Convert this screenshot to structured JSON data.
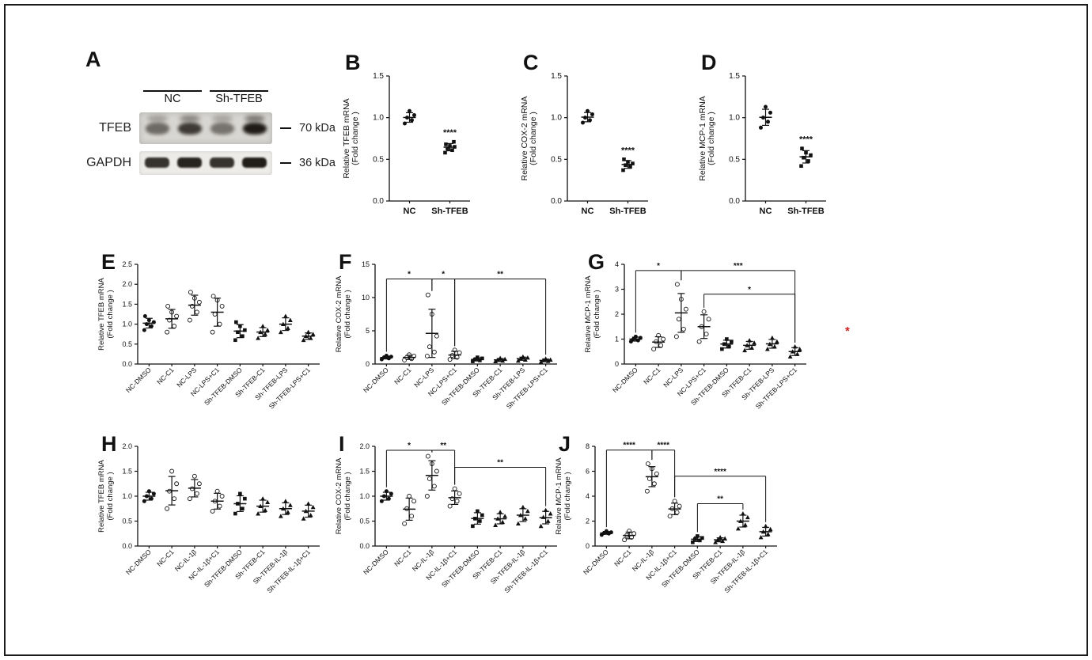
{
  "figure": {
    "background": "#ffffff",
    "border_color": "#1a1a1a"
  },
  "panel_a": {
    "letter": "A",
    "group_labels": [
      "NC",
      "Sh-TFEB"
    ],
    "row_labels": [
      "TFEB",
      "GAPDH"
    ],
    "marker_labels": [
      "70 kDa",
      "36 kDa"
    ],
    "band_intensities": {
      "tfeb": [
        0.55,
        0.8,
        0.5,
        0.95
      ],
      "gapdh": [
        0.85,
        0.92,
        0.85,
        0.95
      ]
    }
  },
  "annotations": {
    "red_star": {
      "text": "*",
      "color": "#cc2222"
    }
  },
  "chart_data": [
    {
      "panel_letter": "B",
      "type": "scatter",
      "ylabel": [
        "Relative TFEB mRNA",
        "(Fold change )"
      ],
      "ylim": [
        0,
        1.5
      ],
      "yticks": [
        0,
        0.5,
        1.0,
        1.5
      ],
      "ytick_decimals": 1,
      "groups": [
        {
          "label": "NC",
          "marker": "circle",
          "points": [
            0.93,
            0.97,
            1.0,
            1.03,
            1.08
          ]
        },
        {
          "label": "Sh-TFEB",
          "marker": "square",
          "points": [
            0.58,
            0.61,
            0.63,
            0.65,
            0.66,
            0.68,
            0.71
          ]
        }
      ],
      "sig_labels": [
        {
          "group": 1,
          "text": "****"
        }
      ],
      "brackets": []
    },
    {
      "panel_letter": "C",
      "type": "scatter",
      "ylabel": [
        "Relative COX-2 mRNA",
        "(Fold change )"
      ],
      "ylim": [
        0,
        1.5
      ],
      "yticks": [
        0,
        0.5,
        1.0,
        1.5
      ],
      "ytick_decimals": 1,
      "groups": [
        {
          "label": "NC",
          "marker": "circle",
          "points": [
            0.94,
            0.97,
            1.0,
            1.04,
            1.08
          ]
        },
        {
          "label": "Sh-TFEB",
          "marker": "square",
          "points": [
            0.37,
            0.41,
            0.43,
            0.45,
            0.47,
            0.5
          ]
        }
      ],
      "sig_labels": [
        {
          "group": 1,
          "text": "****"
        }
      ],
      "brackets": []
    },
    {
      "panel_letter": "D",
      "type": "scatter",
      "ylabel": [
        "Relative MCP-1 mRNA",
        "(Fold change )"
      ],
      "ylim": [
        0,
        1.5
      ],
      "yticks": [
        0,
        0.5,
        1.0,
        1.5
      ],
      "ytick_decimals": 1,
      "groups": [
        {
          "label": "NC",
          "marker": "circle",
          "points": [
            0.88,
            0.95,
            1.0,
            1.06,
            1.13
          ]
        },
        {
          "label": "Sh-TFEB",
          "marker": "square",
          "points": [
            0.42,
            0.48,
            0.52,
            0.55,
            0.58,
            0.63
          ]
        }
      ],
      "sig_labels": [
        {
          "group": 1,
          "text": "****"
        }
      ],
      "brackets": []
    },
    {
      "panel_letter": "E",
      "type": "scatter",
      "ylabel": [
        "Relative TFEB mRNA",
        "(Fold change )"
      ],
      "ylim": [
        0,
        2.5
      ],
      "yticks": [
        0,
        0.5,
        1.0,
        1.5,
        2.0,
        2.5
      ],
      "ytick_decimals": 1,
      "groups": [
        {
          "label": "NC-DMSO",
          "marker": "circle",
          "points": [
            0.85,
            0.95,
            1.0,
            1.05,
            1.1,
            1.2
          ]
        },
        {
          "label": "NC-C1",
          "marker": "circle-open",
          "points": [
            0.8,
            0.95,
            1.1,
            1.2,
            1.3,
            1.45
          ]
        },
        {
          "label": "NC-LPS",
          "marker": "circle-open",
          "points": [
            1.1,
            1.3,
            1.45,
            1.55,
            1.65,
            1.8
          ]
        },
        {
          "label": "NC-LPS+C1",
          "marker": "circle-open",
          "points": [
            0.8,
            1.0,
            1.25,
            1.45,
            1.6,
            1.7
          ]
        },
        {
          "label": "Sh-TFEB-DMSO",
          "marker": "square",
          "points": [
            0.6,
            0.7,
            0.8,
            0.85,
            0.95,
            1.05
          ]
        },
        {
          "label": "Sh-TFEB-C1",
          "marker": "triangle",
          "points": [
            0.65,
            0.75,
            0.8,
            0.85,
            0.95
          ]
        },
        {
          "label": "Sh-TFEB-LPS",
          "marker": "triangle",
          "points": [
            0.8,
            0.9,
            1.0,
            1.1,
            1.2
          ]
        },
        {
          "label": "Sh-TFEB-LPS+C1",
          "marker": "triangle",
          "points": [
            0.6,
            0.65,
            0.7,
            0.75,
            0.8
          ]
        }
      ],
      "sig_labels": [],
      "brackets": []
    },
    {
      "panel_letter": "F",
      "type": "scatter",
      "ylabel": [
        "Relative COX-2 mRNA",
        "(Fold change )"
      ],
      "ylim": [
        0,
        15
      ],
      "yticks": [
        0,
        5,
        10,
        15
      ],
      "ytick_decimals": 0,
      "groups": [
        {
          "label": "NC-DMSO",
          "marker": "circle",
          "points": [
            0.7,
            0.85,
            1.0,
            1.1,
            1.25
          ]
        },
        {
          "label": "NC-C1",
          "marker": "circle-open",
          "points": [
            0.6,
            0.8,
            1.0,
            1.2,
            1.4
          ]
        },
        {
          "label": "NC-LPS",
          "marker": "circle-open",
          "points": [
            1.2,
            1.8,
            2.6,
            4.2,
            7.5,
            10.4
          ]
        },
        {
          "label": "NC-LPS+C1",
          "marker": "circle-open",
          "points": [
            0.7,
            1.0,
            1.3,
            1.7,
            2.1
          ]
        },
        {
          "label": "Sh-TFEB-DMSO",
          "marker": "square",
          "points": [
            0.4,
            0.55,
            0.7,
            0.85,
            1.0
          ]
        },
        {
          "label": "Sh-TFEB-C1",
          "marker": "triangle",
          "points": [
            0.4,
            0.5,
            0.6,
            0.75,
            0.9
          ]
        },
        {
          "label": "Sh-TFEB-LPS",
          "marker": "triangle",
          "points": [
            0.5,
            0.65,
            0.8,
            0.95,
            1.1
          ]
        },
        {
          "label": "Sh-TFEB-LPS+C1",
          "marker": "triangle",
          "points": [
            0.3,
            0.45,
            0.55,
            0.65,
            0.8
          ]
        }
      ],
      "sig_labels": [],
      "brackets": [
        {
          "from": 0,
          "to": 2,
          "label": "*",
          "y": 12.8
        },
        {
          "from": 2,
          "to": 3,
          "label": "*",
          "y": 12.8
        },
        {
          "from": 3,
          "to": 7,
          "label": "**",
          "y": 12.8
        }
      ]
    },
    {
      "panel_letter": "G",
      "type": "scatter",
      "ylabel": [
        "Relative MCP-1 mRNA",
        "(Fold change )"
      ],
      "ylim": [
        0,
        4
      ],
      "yticks": [
        0,
        1,
        2,
        3,
        4
      ],
      "ytick_decimals": 0,
      "groups": [
        {
          "label": "NC-DMSO",
          "marker": "circle",
          "points": [
            0.9,
            0.95,
            1.0,
            1.05,
            1.1
          ]
        },
        {
          "label": "NC-C1",
          "marker": "circle-open",
          "points": [
            0.6,
            0.75,
            0.9,
            1.0,
            1.15
          ]
        },
        {
          "label": "NC-LPS",
          "marker": "circle-open",
          "points": [
            1.1,
            1.4,
            1.8,
            2.2,
            2.6,
            3.2
          ]
        },
        {
          "label": "NC-LPS+C1",
          "marker": "circle-open",
          "points": [
            0.9,
            1.2,
            1.5,
            1.8,
            2.1
          ]
        },
        {
          "label": "Sh-TFEB-DMSO",
          "marker": "square",
          "points": [
            0.6,
            0.7,
            0.8,
            0.9,
            1.0
          ]
        },
        {
          "label": "Sh-TFEB-C1",
          "marker": "triangle",
          "points": [
            0.55,
            0.65,
            0.75,
            0.85,
            0.95
          ]
        },
        {
          "label": "Sh-TFEB-LPS",
          "marker": "triangle",
          "points": [
            0.6,
            0.7,
            0.8,
            0.9,
            1.05
          ]
        },
        {
          "label": "Sh-TFEB-LPS+C1",
          "marker": "triangle",
          "points": [
            0.3,
            0.4,
            0.5,
            0.6,
            0.7
          ]
        }
      ],
      "sig_labels": [],
      "brackets": [
        {
          "from": 0,
          "to": 2,
          "label": "*",
          "y": 3.75
        },
        {
          "from": 2,
          "to": 7,
          "label": "***",
          "y": 3.75
        },
        {
          "from": 3,
          "to": 7,
          "label": "*",
          "y": 2.8
        }
      ]
    },
    {
      "panel_letter": "H",
      "type": "scatter",
      "ylabel": [
        "Relative TFEB mRNA",
        "(Fold change )"
      ],
      "ylim": [
        0,
        2
      ],
      "yticks": [
        0,
        0.5,
        1.0,
        1.5,
        2.0
      ],
      "ytick_decimals": 1,
      "groups": [
        {
          "label": "NC-DMSO",
          "marker": "circle",
          "points": [
            0.9,
            0.95,
            1.0,
            1.05,
            1.1
          ]
        },
        {
          "label": "NC-C1",
          "marker": "circle-open",
          "points": [
            0.75,
            0.95,
            1.1,
            1.25,
            1.5
          ]
        },
        {
          "label": "NC-IL-1β",
          "marker": "circle-open",
          "points": [
            0.95,
            1.05,
            1.15,
            1.25,
            1.4
          ]
        },
        {
          "label": "NC-IL-1β+C1",
          "marker": "circle-open",
          "points": [
            0.7,
            0.8,
            0.9,
            1.0,
            1.1
          ]
        },
        {
          "label": "Sh-TFEB-DMSO",
          "marker": "square",
          "points": [
            0.65,
            0.75,
            0.85,
            0.95,
            1.05
          ]
        },
        {
          "label": "Sh-TFEB-C1",
          "marker": "triangle",
          "points": [
            0.65,
            0.72,
            0.8,
            0.88,
            0.95
          ]
        },
        {
          "label": "Sh-TFEB-IL-1β",
          "marker": "triangle",
          "points": [
            0.6,
            0.68,
            0.75,
            0.82,
            0.9
          ]
        },
        {
          "label": "Sh-TFEB-IL-1β+C1",
          "marker": "triangle",
          "points": [
            0.55,
            0.62,
            0.7,
            0.78,
            0.85
          ]
        }
      ],
      "sig_labels": [],
      "brackets": []
    },
    {
      "panel_letter": "I",
      "type": "scatter",
      "ylabel": [
        "Relative COX-2 mRNA",
        "(Fold change )"
      ],
      "ylim": [
        0,
        2
      ],
      "yticks": [
        0,
        0.5,
        1.0,
        1.5,
        2.0
      ],
      "ytick_decimals": 1,
      "groups": [
        {
          "label": "NC-DMSO",
          "marker": "circle",
          "points": [
            0.9,
            0.95,
            1.0,
            1.05,
            1.1
          ]
        },
        {
          "label": "NC-C1",
          "marker": "circle-open",
          "points": [
            0.45,
            0.6,
            0.75,
            0.9,
            1.0
          ]
        },
        {
          "label": "NC-IL-1β",
          "marker": "circle-open",
          "points": [
            1.0,
            1.2,
            1.35,
            1.5,
            1.65,
            1.8
          ]
        },
        {
          "label": "NC-IL-1β+C1",
          "marker": "circle-open",
          "points": [
            0.8,
            0.9,
            0.95,
            1.05,
            1.15
          ]
        },
        {
          "label": "Sh-TFEB-DMSO",
          "marker": "square",
          "points": [
            0.4,
            0.5,
            0.55,
            0.62,
            0.7
          ]
        },
        {
          "label": "Sh-TFEB-C1",
          "marker": "triangle",
          "points": [
            0.42,
            0.48,
            0.55,
            0.6,
            0.68
          ]
        },
        {
          "label": "Sh-TFEB-IL-1β",
          "marker": "triangle",
          "points": [
            0.45,
            0.55,
            0.62,
            0.7,
            0.78
          ]
        },
        {
          "label": "Sh-TFEB-IL-1β+C1",
          "marker": "triangle",
          "points": [
            0.4,
            0.5,
            0.58,
            0.65,
            0.72
          ]
        }
      ],
      "sig_labels": [],
      "brackets": [
        {
          "from": 0,
          "to": 2,
          "label": "*",
          "y": 1.92
        },
        {
          "from": 2,
          "to": 3,
          "label": "**",
          "y": 1.92
        },
        {
          "from": 3,
          "to": 7,
          "label": "**",
          "y": 1.58
        }
      ]
    },
    {
      "panel_letter": "J",
      "type": "scatter",
      "ylabel": [
        "Relative MCP-1 mRNA",
        "(Fold change )"
      ],
      "ylim": [
        0,
        8
      ],
      "yticks": [
        0,
        2,
        4,
        6,
        8
      ],
      "ytick_decimals": 0,
      "groups": [
        {
          "label": "NC-DMSO",
          "marker": "circle",
          "points": [
            0.9,
            1.0,
            1.05,
            1.1,
            1.2
          ]
        },
        {
          "label": "NC-C1",
          "marker": "circle-open",
          "points": [
            0.5,
            0.7,
            0.85,
            1.0,
            1.2
          ]
        },
        {
          "label": "NC-IL-1β",
          "marker": "circle-open",
          "points": [
            4.4,
            5.0,
            5.4,
            5.8,
            6.2,
            6.6
          ]
        },
        {
          "label": "NC-IL-1β+C1",
          "marker": "circle-open",
          "points": [
            2.4,
            2.7,
            3.0,
            3.2,
            3.6
          ]
        },
        {
          "label": "Sh-TFEB-DMSO",
          "marker": "square",
          "points": [
            0.3,
            0.45,
            0.55,
            0.65,
            0.8
          ]
        },
        {
          "label": "Sh-TFEB-C1",
          "marker": "triangle",
          "points": [
            0.3,
            0.4,
            0.5,
            0.6,
            0.7
          ]
        },
        {
          "label": "Sh-TFEB-IL-1β",
          "marker": "triangle",
          "points": [
            1.4,
            1.7,
            2.0,
            2.3,
            2.6
          ]
        },
        {
          "label": "Sh-TFEB-IL-1β+C1",
          "marker": "triangle",
          "points": [
            0.7,
            0.95,
            1.15,
            1.35,
            1.6
          ]
        }
      ],
      "sig_labels": [],
      "brackets": [
        {
          "from": 0,
          "to": 2,
          "label": "****",
          "y": 7.7
        },
        {
          "from": 2,
          "to": 3,
          "label": "****",
          "y": 7.7
        },
        {
          "from": 3,
          "to": 7,
          "label": "****",
          "y": 5.6
        },
        {
          "from": 4,
          "to": 6,
          "label": "**",
          "y": 3.4
        }
      ]
    }
  ]
}
